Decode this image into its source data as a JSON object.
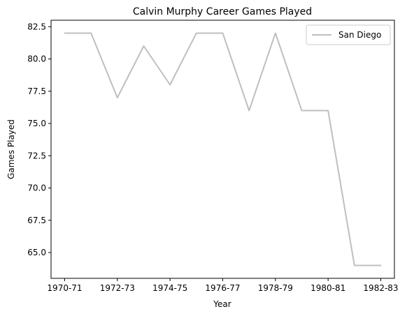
{
  "chart_data": {
    "type": "line",
    "title": "Calvin Murphy Career Games Played",
    "xlabel": "Year",
    "ylabel": "Games Played",
    "x": [
      "1970-71",
      "1971-72",
      "1972-73",
      "1973-74",
      "1974-75",
      "1975-76",
      "1976-77",
      "1977-78",
      "1978-79",
      "1979-80",
      "1980-81",
      "1981-82",
      "1982-83"
    ],
    "x_tick_labels": [
      "1970-71",
      "1972-73",
      "1974-75",
      "1976-77",
      "1978-79",
      "1980-81",
      "1982-83"
    ],
    "y_ticks": [
      "65.0",
      "67.5",
      "70.0",
      "72.5",
      "75.0",
      "77.5",
      "80.0",
      "82.5"
    ],
    "ylim": [
      63.0,
      83.0
    ],
    "series": [
      {
        "name": "San Diego",
        "color": "#bfbfbf",
        "values": [
          82,
          82,
          77,
          81,
          78,
          82,
          82,
          76,
          82,
          76,
          76,
          64,
          64
        ]
      }
    ],
    "legend": "top-right",
    "grid": false
  }
}
